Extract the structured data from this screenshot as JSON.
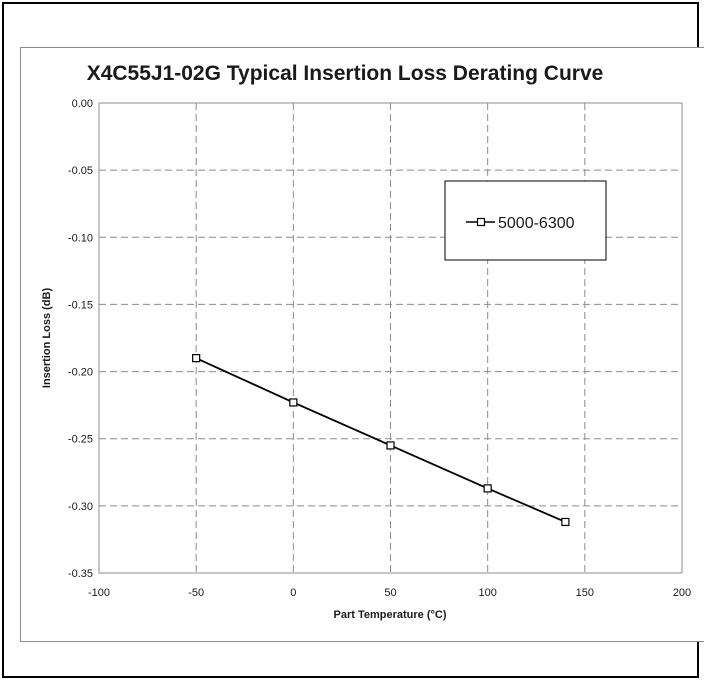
{
  "chart_data": {
    "type": "line",
    "title": "X4C55J1-02G Typical Insertion Loss Derating Curve",
    "xlabel": "Part Temperature (°C)",
    "ylabel": "Insertion Loss (dB)",
    "xlim": [
      -100,
      200
    ],
    "ylim": [
      -0.35,
      0.0
    ],
    "xticks": [
      -100,
      -50,
      0,
      50,
      100,
      150,
      200
    ],
    "xtick_labels": [
      "-100",
      "-50",
      "0",
      "50",
      "100",
      "150",
      "200"
    ],
    "yticks": [
      0.0,
      -0.05,
      -0.1,
      -0.15,
      -0.2,
      -0.25,
      -0.3,
      -0.35
    ],
    "ytick_labels": [
      "0.00",
      "-0.05",
      "-0.10",
      "-0.15",
      "-0.20",
      "-0.25",
      "-0.30",
      "-0.35"
    ],
    "grid": true,
    "grid_style": "dashed",
    "legend_position": "top-right",
    "series": [
      {
        "name": "5000-6300",
        "color": "#000000",
        "marker": "open-square",
        "x": [
          -50,
          0,
          50,
          100,
          140
        ],
        "y": [
          -0.19,
          -0.223,
          -0.255,
          -0.287,
          -0.312
        ]
      }
    ]
  }
}
